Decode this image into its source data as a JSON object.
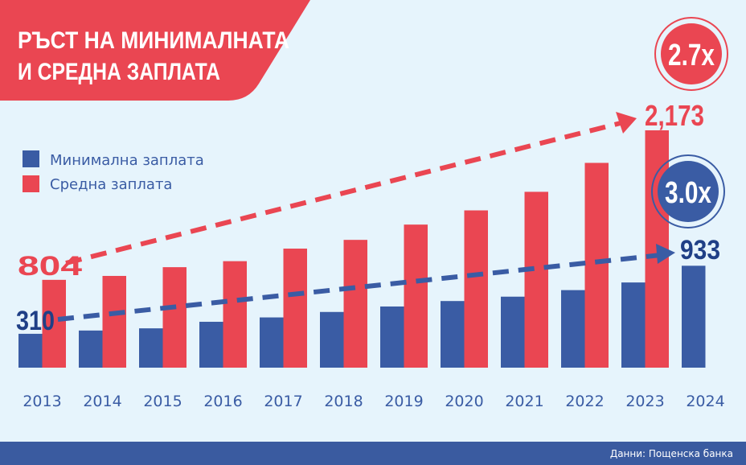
{
  "title_line1": "РЪСТ НА МИНИМАЛНАТА",
  "title_line2": "И СРЕДНА ЗАПЛАТА",
  "source": "Данни: Пощенска банка",
  "colors": {
    "background": "#e6f4fc",
    "minimum": "#3a5ca4",
    "average": "#ea4652",
    "label_blue": "#1f3f86"
  },
  "chart_data": {
    "type": "bar",
    "title": "РЪСТ НА МИНИМАЛНАТА И СРЕДНА ЗАПЛАТА",
    "categories": [
      "2013",
      "2014",
      "2015",
      "2016",
      "2017",
      "2018",
      "2019",
      "2020",
      "2021",
      "2022",
      "2023",
      "2024"
    ],
    "series": [
      {
        "name": "Минимална заплата",
        "color": "#3a5ca4",
        "values": [
          310,
          340,
          360,
          420,
          460,
          510,
          560,
          610,
          650,
          710,
          780,
          933
        ]
      },
      {
        "name": "Средна заплата",
        "color": "#ea4652",
        "values": [
          804,
          840,
          920,
          975,
          1090,
          1170,
          1310,
          1440,
          1610,
          1875,
          2173,
          null
        ]
      }
    ],
    "data_labels": {
      "min_start": "310",
      "min_end": "933",
      "avg_start": "804",
      "avg_end": "2,173"
    },
    "growth_badges": {
      "average": "2.7x",
      "minimum": "3.0x"
    },
    "legend_position": "top-left",
    "grid": false,
    "ylim": [
      0,
      2173
    ]
  }
}
